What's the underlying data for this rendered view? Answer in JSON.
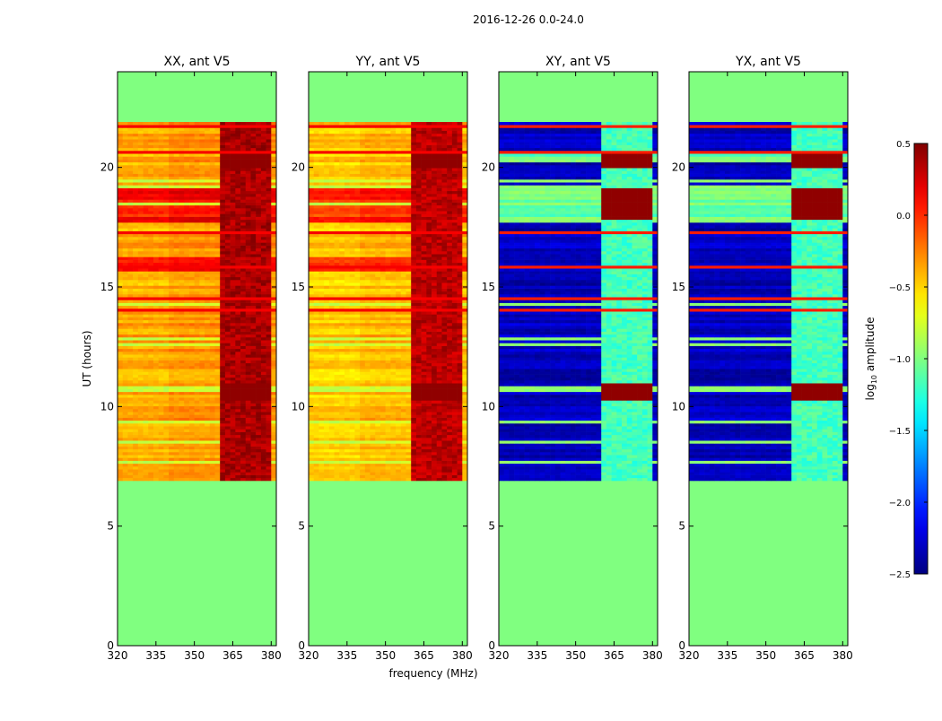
{
  "figure": {
    "suptitle": "2016-12-26 0.0-24.0",
    "ylabel": "UT (hours)",
    "xlabel": "frequency (MHz)"
  },
  "chart_data": {
    "type": "heatmap",
    "x_range": [
      320,
      382
    ],
    "y_range": [
      0,
      24
    ],
    "x_ticks": [
      320,
      335,
      350,
      365,
      380
    ],
    "x_tick_labels": [
      "320",
      "335",
      "350",
      "365",
      "380"
    ],
    "y_ticks": [
      0,
      5,
      10,
      15,
      20
    ],
    "y_tick_labels": [
      "0",
      "5",
      "10",
      "15",
      "20"
    ],
    "data_coverage_hours": [
      6.9,
      21.9
    ],
    "rfi_bands_mhz": [
      [
        360,
        365
      ],
      [
        366,
        370
      ],
      [
        371,
        375
      ],
      [
        377,
        380
      ]
    ],
    "flagged_value": -1.0,
    "colorbar": {
      "label": "log10 amplitude",
      "label_prefix": "log",
      "label_sub": "10",
      "label_suffix": " amplitude",
      "range": [
        -2.5,
        0.5
      ],
      "ticks": [
        0.5,
        0.0,
        -0.5,
        -1.0,
        -1.5,
        -2.0,
        -2.5
      ],
      "tick_labels": [
        "0.5",
        "0.0",
        "−0.5",
        "−1.0",
        "−1.5",
        "−2.0",
        "−2.5"
      ],
      "colormap": "jet"
    },
    "panels": [
      {
        "title": "XX, ant V5",
        "polarization": "XX",
        "antenna": "V5",
        "base_amplitude": -0.35,
        "strong_rows_hours": [
          [
            17.6,
            19.1
          ],
          [
            15.6,
            16.2
          ]
        ],
        "strong_row_amplitude": 0.1,
        "rfi_amplitude": 0.35,
        "hot_blocks_hours": [
          [
            10.2,
            10.9
          ],
          [
            19.9,
            20.5
          ]
        ]
      },
      {
        "title": "YY, ant V5",
        "polarization": "YY",
        "antenna": "V5",
        "base_amplitude": -0.45,
        "strong_rows_hours": [
          [
            17.6,
            19.1
          ],
          [
            15.6,
            16.2
          ]
        ],
        "strong_row_amplitude": 0.0,
        "rfi_amplitude": 0.3,
        "hot_blocks_hours": [
          [
            10.2,
            10.9
          ],
          [
            19.9,
            20.5
          ]
        ]
      },
      {
        "title": "XY, ant V5",
        "polarization": "XY",
        "antenna": "V5",
        "base_amplitude": -2.35,
        "strong_rows_hours": [
          [
            17.6,
            19.1
          ],
          [
            20.1,
            20.6
          ]
        ],
        "strong_row_amplitude": -1.1,
        "rfi_amplitude": -1.2,
        "hot_blocks_hours": [
          [
            10.2,
            10.9
          ],
          [
            19.9,
            20.5
          ],
          [
            17.7,
            19.1
          ]
        ]
      },
      {
        "title": "YX, ant V5",
        "polarization": "YX",
        "antenna": "V5",
        "base_amplitude": -2.35,
        "strong_rows_hours": [
          [
            17.6,
            19.1
          ],
          [
            20.1,
            20.6
          ]
        ],
        "strong_row_amplitude": -1.1,
        "rfi_amplitude": -1.2,
        "hot_blocks_hours": [
          [
            10.2,
            10.9
          ],
          [
            19.9,
            20.5
          ],
          [
            17.7,
            19.1
          ]
        ]
      }
    ]
  }
}
